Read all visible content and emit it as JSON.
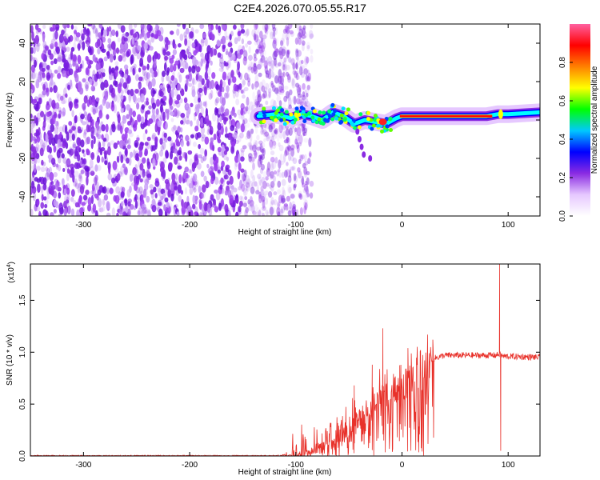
{
  "title": "C2E4.2026.070.05.55.R17",
  "chart_data": [
    {
      "type": "heatmap",
      "xlabel": "Height of straight line (km)",
      "ylabel": "Frequency (Hz)",
      "xlim": [
        -350,
        130
      ],
      "ylim": [
        -50,
        50
      ],
      "xticks": [
        -300,
        -200,
        -100,
        0,
        100
      ],
      "xtick_labels": [
        "-300",
        "-200",
        "-100",
        "0",
        "100"
      ],
      "yticks": [
        -40,
        -20,
        0,
        20,
        40
      ],
      "ytick_labels": [
        "-40",
        "-20",
        "0",
        "20",
        "40"
      ],
      "colorbar": {
        "label": "Normalized spectral amplitude",
        "range": [
          0,
          1
        ],
        "ticks": [
          0,
          0.2,
          0.4,
          0.6,
          0.8
        ],
        "tick_labels": [
          "0.0",
          "0.2",
          "0.4",
          "0.6",
          "0.8"
        ],
        "colormap": [
          "#ffffff",
          "#e6c8ff",
          "#8a2be2",
          "#0000ff",
          "#00c8ff",
          "#00ff00",
          "#ffff00",
          "#ff8000",
          "#ff0000",
          "#ff60a0"
        ]
      },
      "signal_track": {
        "x": [
          -135,
          -120,
          -105,
          -95,
          -85,
          -75,
          -65,
          -55,
          -45,
          -35,
          -25,
          -15,
          -5,
          0,
          20,
          50,
          80,
          90,
          100,
          130
        ],
        "y": [
          2,
          3,
          1,
          3,
          2,
          0,
          4,
          2,
          -2,
          0,
          -1,
          -2,
          1,
          2,
          2,
          2,
          2,
          3,
          3,
          4
        ]
      },
      "noise_region_x": [
        -350,
        -100
      ]
    },
    {
      "type": "line",
      "xlabel": "Height of straight line (km)",
      "ylabel": "SNR (10 * v/v)",
      "yscale_label": "(x10",
      "yscale_exp": "4",
      "yscale_close": ")",
      "xlim": [
        -350,
        130
      ],
      "ylim": [
        0,
        1.85
      ],
      "xticks": [
        -300,
        -200,
        -100,
        0,
        100
      ],
      "xtick_labels": [
        "-300",
        "-200",
        "-100",
        "0",
        "100"
      ],
      "yticks": [
        0,
        0.5,
        1.0,
        1.5
      ],
      "ytick_labels": [
        "0.0",
        "0.5",
        "1.0",
        "1.5"
      ],
      "series": [
        {
          "color": "#e8312a",
          "envelope": {
            "x": [
              -350,
              -120,
              -100,
              -90,
              -80,
              -70,
              -60,
              -50,
              -40,
              -30,
              -20,
              -10,
              0,
              10,
              20,
              30,
              40,
              60,
              80,
              88,
              92,
              95,
              100,
              130
            ],
            "y": [
              0.0,
              0.0,
              0.02,
              0.05,
              0.12,
              0.18,
              0.25,
              0.3,
              0.38,
              0.45,
              0.55,
              0.62,
              0.72,
              0.8,
              0.88,
              0.94,
              0.97,
              0.97,
              0.97,
              0.97,
              0.98,
              0.96,
              0.96,
              0.95
            ]
          },
          "spikes": [
            {
              "x": -18,
              "y": 1.23
            },
            {
              "x": -28,
              "y": 0.88
            },
            {
              "x": -45,
              "y": 0.68
            },
            {
              "x": 92,
              "y": 1.85
            },
            {
              "x": 93,
              "y": 0.05
            }
          ]
        }
      ]
    }
  ]
}
